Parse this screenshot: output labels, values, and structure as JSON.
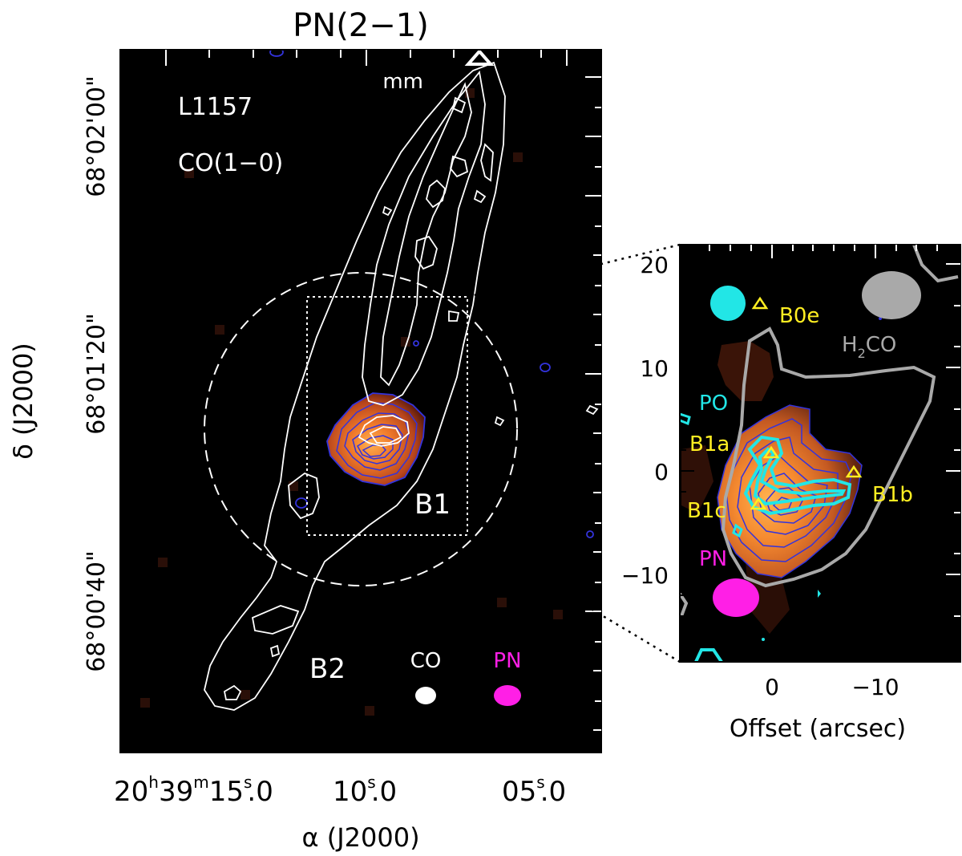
{
  "title": "PN(2−1)",
  "colors": {
    "contour_white": "#ffffff",
    "pn_contour": "#3333dd",
    "cyan": "#22e6e6",
    "magenta": "#ff1fe6",
    "yellow": "#ffee22",
    "gray": "#a9a9a9",
    "emission_peak": "#ff9933",
    "emission_mid": "#d2541a"
  },
  "main_panel": {
    "label_mm": "mm",
    "label_source": "L1157",
    "label_tracer": "CO(1−0)",
    "label_b1": "B1",
    "label_b2": "B2",
    "beam_co_label": "CO",
    "beam_pn_label": "PN",
    "y_axis_title": "δ (J2000)",
    "x_axis_title": "α (J2000)",
    "y_ticks": [
      "68°02'00\"",
      "68°01'20\"",
      "68°00'40\""
    ],
    "x_ticks": {
      "t1": {
        "h": "20",
        "m": "39",
        "s": "15",
        "frac": "0"
      },
      "t2": {
        "s": "10",
        "frac": "0"
      },
      "t3": {
        "s": "05",
        "frac": "0"
      }
    }
  },
  "inset_panel": {
    "x_axis_title": "Offset (arcsec)",
    "y_ticks": [
      "20",
      "10",
      "0",
      "−10"
    ],
    "x_ticks": [
      "0",
      "−10"
    ],
    "labels": {
      "b0e": "B0e",
      "h2co_main": "H",
      "h2co_sub": "2",
      "h2co_end": "CO",
      "po": "PO",
      "b1a": "B1a",
      "b1b": "B1b",
      "b1c": "B1c",
      "pn": "PN"
    }
  }
}
